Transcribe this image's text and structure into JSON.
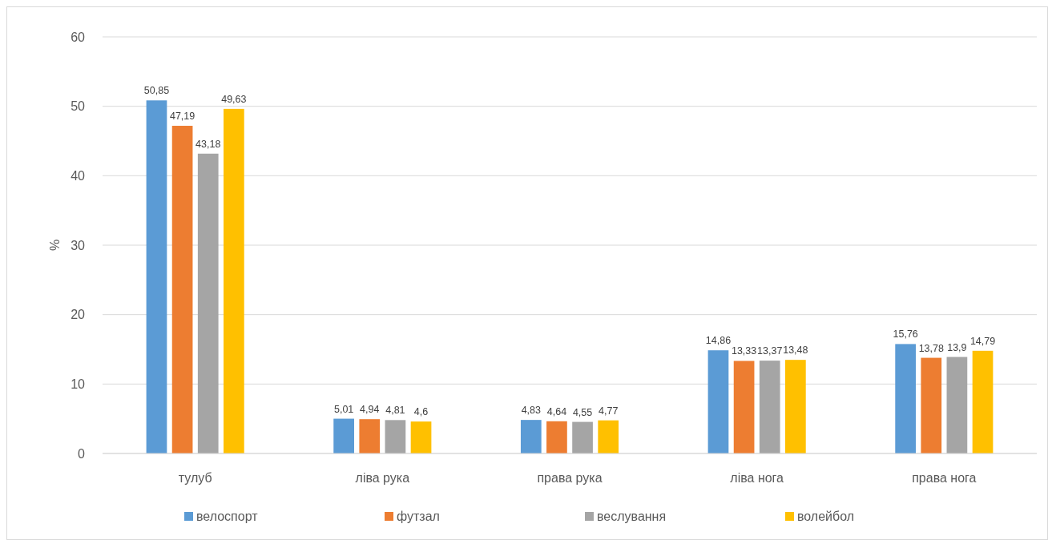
{
  "chart_data": {
    "type": "bar",
    "ylabel": "%",
    "categories": [
      "тулуб",
      "ліва рука",
      "права рука",
      "ліва нога",
      "права нога"
    ],
    "series": [
      {
        "name": "велоспорт",
        "color": "#5b9bd5",
        "values": [
          50.85,
          5.01,
          4.83,
          14.86,
          15.76
        ],
        "value_labels": [
          "50,85",
          "5,01",
          "4,83",
          "14,86",
          "15,76"
        ]
      },
      {
        "name": "футзал",
        "color": "#ed7d31",
        "values": [
          47.19,
          4.94,
          4.64,
          13.33,
          13.78
        ],
        "value_labels": [
          "47,19",
          "4,94",
          "4,64",
          "13,33",
          "13,78"
        ]
      },
      {
        "name": "веслування",
        "color": "#a5a5a5",
        "values": [
          43.18,
          4.81,
          4.55,
          13.37,
          13.9
        ],
        "value_labels": [
          "43,18",
          "4,81",
          "4,55",
          "13,37",
          "13,9"
        ]
      },
      {
        "name": "волейбол",
        "color": "#ffc000",
        "values": [
          49.63,
          4.6,
          4.77,
          13.48,
          14.79
        ],
        "value_labels": [
          "49,63",
          "4,6",
          "4,77",
          "13,48",
          "14,79"
        ]
      }
    ],
    "ylim": [
      0,
      60
    ],
    "yticks": [
      0,
      10,
      20,
      30,
      40,
      50,
      60
    ],
    "grid": "y",
    "legend": "bottom"
  }
}
